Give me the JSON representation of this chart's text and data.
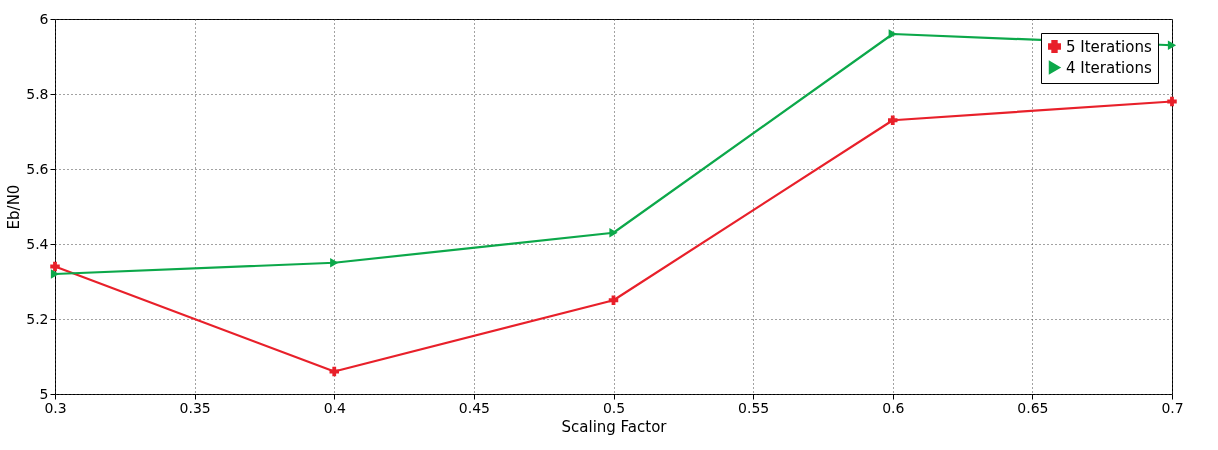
{
  "chart_data": {
    "type": "line",
    "xlabel": "Scaling Factor",
    "ylabel": "Eb/N0",
    "x": [
      0.3,
      0.4,
      0.5,
      0.6,
      0.7
    ],
    "series": [
      {
        "name": "5 Iterations",
        "color": "#e8202a",
        "marker": "cross",
        "values": [
          5.34,
          5.06,
          5.25,
          5.73,
          5.78
        ]
      },
      {
        "name": "4 Iterations",
        "color": "#0ca84a",
        "marker": "triangle",
        "values": [
          5.32,
          5.35,
          5.43,
          5.96,
          5.93
        ]
      }
    ],
    "xlim": [
      0.3,
      0.7
    ],
    "xticks": [
      0.3,
      0.35,
      0.4,
      0.45,
      0.5,
      0.55,
      0.6,
      0.65,
      0.7
    ],
    "ylim": [
      5,
      6
    ],
    "yticks": [
      5,
      5.2,
      5.4,
      5.6,
      5.8,
      6
    ],
    "grid": true,
    "legend": "top right",
    "line_style": "solid"
  }
}
